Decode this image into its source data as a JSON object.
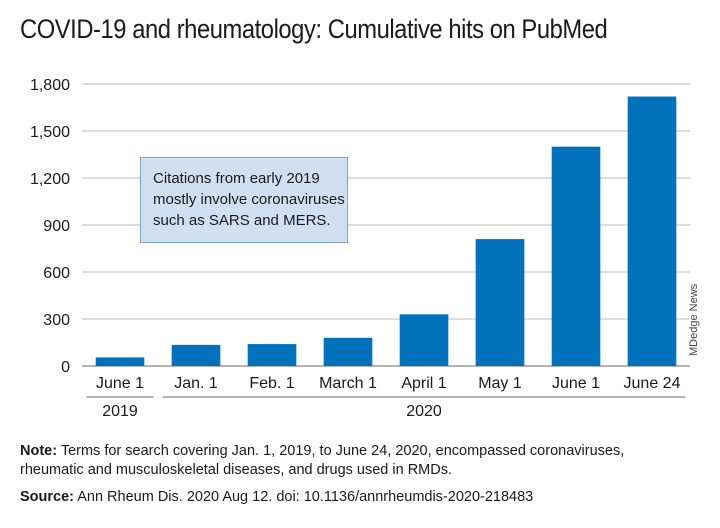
{
  "chart_data": {
    "type": "bar",
    "title": "COVID-19 and rheumatology: Cumulative hits on PubMed",
    "categories": [
      "June 1",
      "Jan. 1",
      "Feb. 1",
      "March 1",
      "April 1",
      "May 1",
      "June 1",
      "June 24"
    ],
    "values": [
      55,
      135,
      140,
      180,
      330,
      810,
      1400,
      1720
    ],
    "year_groups": [
      {
        "label": "2019",
        "from": 0,
        "to": 0
      },
      {
        "label": "2020",
        "from": 1,
        "to": 7
      }
    ],
    "yticks": [
      "0",
      "300",
      "600",
      "900",
      "1,200",
      "1,500",
      "1,800"
    ],
    "ytick_values": [
      0,
      300,
      600,
      900,
      1200,
      1500,
      1800
    ],
    "ylim": [
      0,
      1800
    ],
    "xlabel": "",
    "ylabel": "",
    "grid": true,
    "bar_color": "#0072bc",
    "grid_color": "#b8b8b8",
    "annotation_lines": [
      "Citations from early 2019",
      "mostly involve coronaviruses",
      "such as SARS and MERS."
    ]
  },
  "credit": "MDedge News",
  "footer": {
    "note_label": "Note:",
    "note_line1": " Terms for search covering Jan. 1, 2019, to June 24, 2020, encompassed coronaviruses,",
    "note_line2": "rheumatic and musculoskeletal diseases, and drugs used in RMDs.",
    "source_label": "Source:",
    "source_text": " Ann Rheum Dis. 2020 Aug 12. doi: 10.1136/annrheumdis-2020-218483"
  }
}
